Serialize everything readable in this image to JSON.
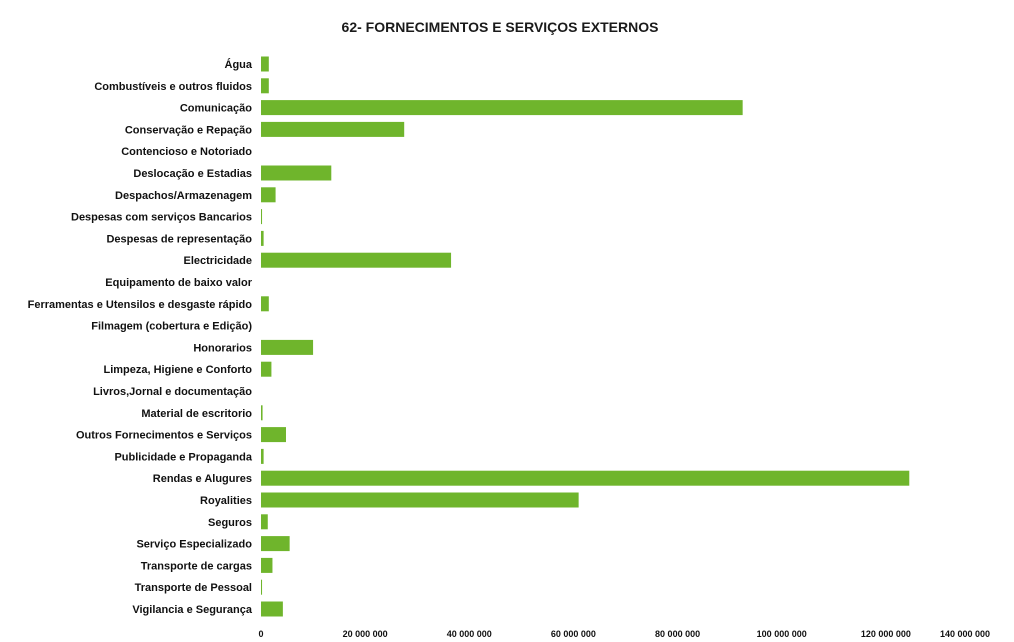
{
  "chart_data": {
    "type": "bar",
    "orientation": "horizontal",
    "title": "62- FORNECIMENTOS E SERVIÇOS EXTERNOS",
    "xlabel": "",
    "ylabel": "",
    "xlim": [
      0,
      140000000
    ],
    "xticks": [
      0,
      20000000,
      40000000,
      60000000,
      80000000,
      100000000,
      120000000,
      140000000
    ],
    "xtick_labels": [
      "0",
      "20 000 000",
      "40 000 000",
      "60 000 000",
      "80 000 000",
      "100 000 000",
      "120 000 000",
      "140 000 000"
    ],
    "grid": false,
    "legend": "none",
    "bar_color": "#6fb52c",
    "categories": [
      "Água",
      "Combustíveis e outros fluidos",
      "Comunicação",
      "Conservação e Repação",
      "Contencioso e Notoriado",
      "Deslocação e Estadias",
      "Despachos/Armazenagem",
      "Despesas com serviços Bancarios",
      "Despesas de representação",
      "Electricidade",
      "Equipamento de baixo valor",
      "Ferramentas e Utensilos e desgaste rápido",
      "Filmagem (cobertura e Edição)",
      "Honorarios",
      "Limpeza, Higiene e Conforto",
      "Livros,Jornal e documentação",
      "Material de escritorio",
      "Outros Fornecimentos e Serviços",
      "Publicidade e Propaganda",
      "Rendas e Alugures",
      "Royalities",
      "Seguros",
      "Serviço Especializado",
      "Transporte de cargas",
      "Transporte de Pessoal",
      "Vigilancia e Segurança"
    ],
    "values": [
      1500000,
      1500000,
      92500000,
      27500000,
      0,
      13500000,
      2800000,
      200000,
      500000,
      36500000,
      0,
      1500000,
      0,
      10000000,
      2000000,
      0,
      300000,
      4800000,
      500000,
      124500000,
      61000000,
      1300000,
      5500000,
      2200000,
      200000,
      4200000
    ]
  }
}
